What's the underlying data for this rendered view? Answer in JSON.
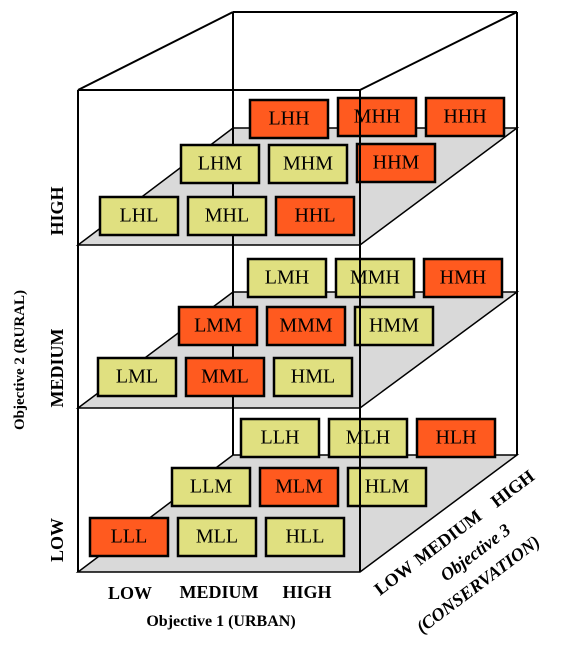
{
  "cells": [
    {
      "label": "LHH",
      "color": "#ff5a1f"
    },
    {
      "label": "MHH",
      "color": "#ff5a1f"
    },
    {
      "label": "HHH",
      "color": "#ff5a1f"
    },
    {
      "label": "LHM",
      "color": "#e0e080"
    },
    {
      "label": "MHM",
      "color": "#e0e080"
    },
    {
      "label": "HHM",
      "color": "#ff5a1f"
    },
    {
      "label": "LHL",
      "color": "#e0e080"
    },
    {
      "label": "MHL",
      "color": "#e0e080"
    },
    {
      "label": "HHL",
      "color": "#ff5a1f"
    },
    {
      "label": "LMH",
      "color": "#e0e080"
    },
    {
      "label": "MMH",
      "color": "#e0e080"
    },
    {
      "label": "HMH",
      "color": "#ff5a1f"
    },
    {
      "label": "LMM",
      "color": "#ff5a1f"
    },
    {
      "label": "MMM",
      "color": "#ff5a1f"
    },
    {
      "label": "HMM",
      "color": "#e0e080"
    },
    {
      "label": "LML",
      "color": "#e0e080"
    },
    {
      "label": "MML",
      "color": "#ff5a1f"
    },
    {
      "label": "HML",
      "color": "#e0e080"
    },
    {
      "label": "LLH",
      "color": "#e0e080"
    },
    {
      "label": "MLH",
      "color": "#e0e080"
    },
    {
      "label": "HLH",
      "color": "#ff5a1f"
    },
    {
      "label": "LLM",
      "color": "#e0e080"
    },
    {
      "label": "MLM",
      "color": "#ff5a1f"
    },
    {
      "label": "HLM",
      "color": "#e0e080"
    },
    {
      "label": "LLL",
      "color": "#ff5a1f"
    },
    {
      "label": "MLL",
      "color": "#e0e080"
    },
    {
      "label": "HLL",
      "color": "#e0e080"
    }
  ],
  "axes": {
    "objective1": {
      "title": "Objective 1 (URBAN)",
      "levels": [
        "LOW",
        "MEDIUM",
        "HIGH"
      ]
    },
    "objective2": {
      "title": "Objective 2 (RURAL)",
      "levels": [
        "LOW",
        "MEDIUM",
        "HIGH"
      ]
    },
    "objective3": {
      "title": "Objective 3",
      "subtitle": "(CONSERVATION)",
      "levels": [
        "LOW",
        "MEDIUM",
        "HIGH"
      ]
    }
  }
}
